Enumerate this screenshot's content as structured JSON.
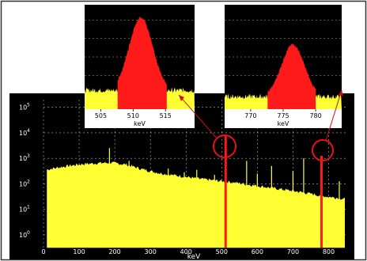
{
  "chart_data": [
    {
      "type": "area",
      "name_hint": "main-spectrum",
      "xlabel": "keV",
      "ylabel": "",
      "xlim": [
        0,
        850
      ],
      "ylim_log10": [
        -0.5,
        5.3
      ],
      "y_scale": "log",
      "x_ticks": [
        0,
        100,
        200,
        300,
        400,
        500,
        600,
        700,
        800
      ],
      "y_ticks": [
        {
          "label": "10",
          "exp": "0",
          "log": 0
        },
        {
          "label": "10",
          "exp": "1",
          "log": 1
        },
        {
          "label": "10",
          "exp": "2",
          "log": 2
        },
        {
          "label": "10",
          "exp": "3",
          "log": 3
        },
        {
          "label": "10",
          "exp": "4",
          "log": 4
        },
        {
          "label": "10",
          "exp": "5",
          "log": 5
        }
      ],
      "continuum": [
        [
          10,
          2.55
        ],
        [
          50,
          2.65
        ],
        [
          100,
          2.75
        ],
        [
          150,
          2.8
        ],
        [
          190,
          2.82
        ],
        [
          230,
          2.75
        ],
        [
          280,
          2.55
        ],
        [
          330,
          2.4
        ],
        [
          380,
          2.3
        ],
        [
          430,
          2.2
        ],
        [
          480,
          2.12
        ],
        [
          530,
          2.05
        ],
        [
          580,
          1.95
        ],
        [
          630,
          1.85
        ],
        [
          680,
          1.75
        ],
        [
          730,
          1.65
        ],
        [
          780,
          1.52
        ],
        [
          820,
          1.45
        ],
        [
          845,
          1.4
        ]
      ],
      "peaks": [
        {
          "x": 185,
          "log": 3.4
        },
        {
          "x": 240,
          "log": 2.9
        },
        {
          "x": 350,
          "log": 2.6
        },
        {
          "x": 395,
          "log": 2.45
        },
        {
          "x": 430,
          "log": 2.55
        },
        {
          "x": 480,
          "log": 2.35
        },
        {
          "x": 511,
          "log": 3.9
        },
        {
          "x": 570,
          "log": 2.9
        },
        {
          "x": 600,
          "log": 2.4
        },
        {
          "x": 640,
          "log": 2.7
        },
        {
          "x": 700,
          "log": 2.5
        },
        {
          "x": 730,
          "log": 3.0
        },
        {
          "x": 780,
          "log": 3.1
        },
        {
          "x": 830,
          "log": 2.1
        }
      ],
      "highlight_peaks": [
        511,
        778
      ],
      "grid": true,
      "colors": {
        "fill": "#ffff33",
        "highlight": "#ff1a1a",
        "background": "#000000",
        "axis": "#ffffff"
      }
    },
    {
      "type": "area",
      "name_hint": "inset-511",
      "xlabel": "keV",
      "xlim": [
        502.5,
        519.5
      ],
      "x_ticks": [
        505,
        510,
        515
      ],
      "peak_center": 511.2,
      "peak_window": [
        507.6,
        515.2
      ],
      "baseline_level": 0.18,
      "peak_level": 0.88,
      "colors": {
        "fill": "#ffff33",
        "highlight": "#ff1a1a",
        "background": "#000000"
      }
    },
    {
      "type": "area",
      "name_hint": "inset-778",
      "xlabel": "keV",
      "xlim": [
        766,
        784
      ],
      "x_ticks": [
        770,
        775,
        780
      ],
      "peak_center": 776.5,
      "peak_window": [
        772.6,
        780.0
      ],
      "baseline_level": 0.12,
      "peak_level": 0.62,
      "colors": {
        "fill": "#ffff33",
        "highlight": "#ff1a1a",
        "background": "#000000"
      }
    }
  ]
}
